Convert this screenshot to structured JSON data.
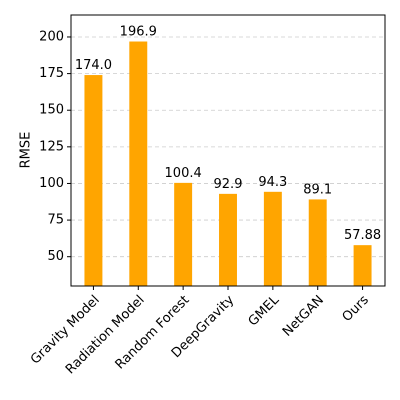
{
  "chart_data": {
    "type": "bar",
    "ylabel": "RMSE",
    "categories": [
      "Gravity Model",
      "Radiation Model",
      "Random Forest",
      "DeepGravity",
      "GMEL",
      "NetGAN",
      "Ours"
    ],
    "values": [
      174.0,
      196.9,
      100.4,
      92.9,
      94.3,
      89.1,
      57.88
    ],
    "value_labels": [
      "174.0",
      "196.9",
      "100.4",
      "92.9",
      "94.3",
      "89.1",
      "57.88"
    ],
    "color": "#ffa500",
    "ylim": [
      30,
      215
    ],
    "yticks": [
      50,
      75,
      100,
      125,
      150,
      175,
      200
    ],
    "grid": true
  }
}
